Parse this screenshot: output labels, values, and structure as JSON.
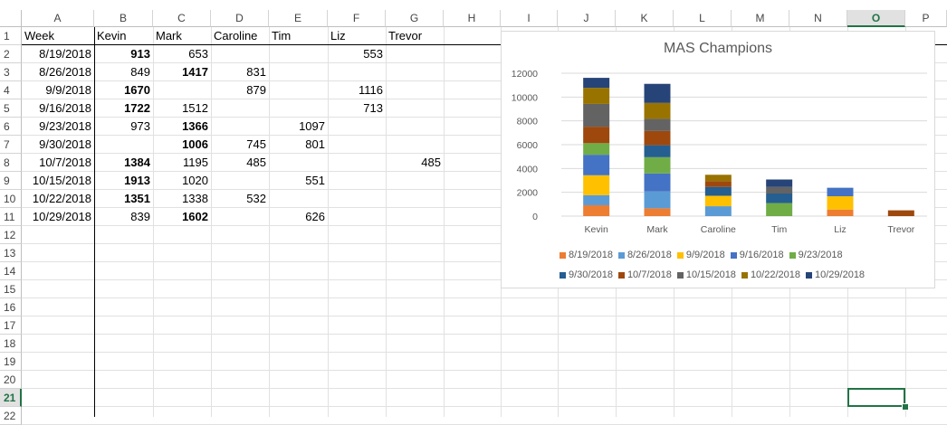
{
  "columns": [
    "A",
    "B",
    "C",
    "D",
    "E",
    "F",
    "G",
    "H",
    "I",
    "J",
    "K",
    "L",
    "M",
    "N",
    "O",
    "P"
  ],
  "selected_column": "O",
  "rows": [
    "1",
    "2",
    "3",
    "4",
    "5",
    "6",
    "7",
    "8",
    "9",
    "10",
    "11",
    "12",
    "13",
    "14",
    "15",
    "16",
    "17",
    "18",
    "19",
    "20",
    "21",
    "22"
  ],
  "selected_row": "21",
  "header": [
    "Week",
    "Kevin",
    "Mark",
    "Caroline",
    "Tim",
    "Liz",
    "Trevor"
  ],
  "data_rows": [
    {
      "week": "8/19/2018",
      "values": [
        "913",
        "653",
        "",
        "",
        "553",
        ""
      ],
      "bold": [
        true,
        false,
        false,
        false,
        false,
        false
      ]
    },
    {
      "week": "8/26/2018",
      "values": [
        "849",
        "1417",
        "831",
        "",
        "",
        ""
      ],
      "bold": [
        false,
        true,
        false,
        false,
        false,
        false
      ]
    },
    {
      "week": "9/9/2018",
      "values": [
        "1670",
        "",
        "879",
        "",
        "1116",
        ""
      ],
      "bold": [
        true,
        false,
        false,
        false,
        false,
        false
      ]
    },
    {
      "week": "9/16/2018",
      "values": [
        "1722",
        "1512",
        "",
        "",
        "713",
        ""
      ],
      "bold": [
        true,
        false,
        false,
        false,
        false,
        false
      ]
    },
    {
      "week": "9/23/2018",
      "values": [
        "973",
        "1366",
        "",
        "1097",
        "",
        ""
      ],
      "bold": [
        false,
        true,
        false,
        false,
        false,
        false
      ]
    },
    {
      "week": "9/30/2018",
      "values": [
        "",
        "1006",
        "745",
        "801",
        "",
        ""
      ],
      "bold": [
        false,
        true,
        false,
        false,
        false,
        false
      ]
    },
    {
      "week": "10/7/2018",
      "values": [
        "1384",
        "1195",
        "485",
        "",
        "",
        "485"
      ],
      "bold": [
        true,
        false,
        false,
        false,
        false,
        false
      ]
    },
    {
      "week": "10/15/2018",
      "values": [
        "1913",
        "1020",
        "",
        "551",
        "",
        ""
      ],
      "bold": [
        true,
        false,
        false,
        false,
        false,
        false
      ]
    },
    {
      "week": "10/22/2018",
      "values": [
        "1351",
        "1338",
        "532",
        "",
        "",
        ""
      ],
      "bold": [
        true,
        false,
        false,
        false,
        false,
        false
      ]
    },
    {
      "week": "10/29/2018",
      "values": [
        "839",
        "1602",
        "",
        "626",
        "",
        ""
      ],
      "bold": [
        false,
        true,
        false,
        false,
        false,
        false
      ]
    }
  ],
  "chart_data": {
    "type": "bar",
    "stacked": true,
    "title": "MAS Champions",
    "categories": [
      "Kevin",
      "Mark",
      "Caroline",
      "Tim",
      "Liz",
      "Trevor"
    ],
    "ylim": [
      0,
      12000
    ],
    "yticks": [
      "0",
      "2000",
      "4000",
      "6000",
      "8000",
      "10000",
      "12000"
    ],
    "grid": true,
    "legend_position": "bottom",
    "series": [
      {
        "name": "8/19/2018",
        "color": "#ED7D31",
        "values": [
          913,
          653,
          0,
          0,
          553,
          0
        ]
      },
      {
        "name": "8/26/2018",
        "color": "#5B9BD5",
        "values": [
          849,
          1417,
          831,
          0,
          0,
          0
        ]
      },
      {
        "name": "9/9/2018",
        "color": "#FFC000",
        "values": [
          1670,
          0,
          879,
          0,
          1116,
          0
        ]
      },
      {
        "name": "9/16/2018",
        "color": "#4472C4",
        "values": [
          1722,
          1512,
          0,
          0,
          713,
          0
        ]
      },
      {
        "name": "9/23/2018",
        "color": "#70AD47",
        "values": [
          973,
          1366,
          0,
          1097,
          0,
          0
        ]
      },
      {
        "name": "9/30/2018",
        "color": "#255E91",
        "values": [
          0,
          1006,
          745,
          801,
          0,
          0
        ]
      },
      {
        "name": "10/7/2018",
        "color": "#9E480E",
        "values": [
          1384,
          1195,
          485,
          0,
          0,
          485
        ]
      },
      {
        "name": "10/15/2018",
        "color": "#636363",
        "values": [
          1913,
          1020,
          0,
          551,
          0,
          0
        ]
      },
      {
        "name": "10/22/2018",
        "color": "#997300",
        "values": [
          1351,
          1338,
          532,
          0,
          0,
          0
        ]
      },
      {
        "name": "10/29/2018",
        "color": "#264478",
        "values": [
          839,
          1602,
          0,
          626,
          0,
          0
        ]
      }
    ]
  }
}
